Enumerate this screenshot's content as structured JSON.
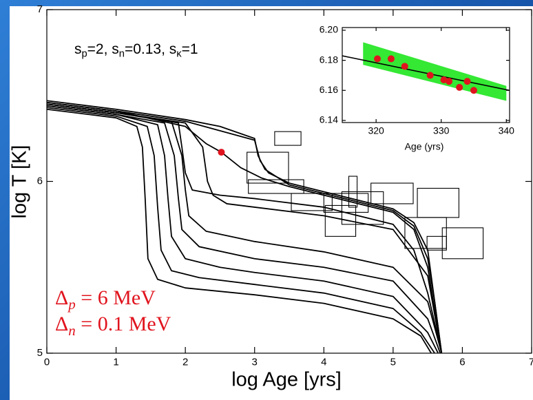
{
  "chart_data": [
    {
      "type": "line",
      "xlabel": "log Age [yrs]",
      "ylabel": "log T [K]",
      "xlim": [
        0,
        7
      ],
      "ylim": [
        5,
        7
      ],
      "xticks": [
        0,
        1,
        2,
        3,
        4,
        5,
        6,
        7
      ],
      "yticks": [
        5,
        6,
        7
      ],
      "series": [
        {
          "color": "#000000",
          "x": [
            0,
            1,
            1.3,
            1.38,
            1.42,
            1.46,
            1.6,
            2,
            3,
            4,
            5,
            5.4,
            5.55
          ],
          "values": [
            6.42,
            6.37,
            6.32,
            6.2,
            5.9,
            5.55,
            5.43,
            5.38,
            5.34,
            5.29,
            5.2,
            5.1,
            5.0
          ]
        },
        {
          "color": "#000000",
          "x": [
            0,
            1,
            1.45,
            1.55,
            1.6,
            1.65,
            1.8,
            2.2,
            3,
            4,
            5,
            5.4,
            5.6
          ],
          "values": [
            6.43,
            6.38,
            6.32,
            6.15,
            5.85,
            5.6,
            5.48,
            5.44,
            5.4,
            5.35,
            5.26,
            5.12,
            5.0
          ]
        },
        {
          "color": "#000000",
          "x": [
            0,
            1,
            1.6,
            1.7,
            1.75,
            1.8,
            2,
            2.5,
            3,
            4,
            5,
            5.5,
            5.65
          ],
          "values": [
            6.44,
            6.39,
            6.33,
            6.15,
            5.9,
            5.68,
            5.55,
            5.5,
            5.47,
            5.42,
            5.33,
            5.12,
            5.0
          ]
        },
        {
          "color": "#000000",
          "x": [
            0,
            1,
            1.7,
            1.84,
            1.9,
            1.95,
            2.2,
            3,
            4,
            5,
            5.5,
            5.68
          ],
          "values": [
            6.44,
            6.39,
            6.34,
            6.15,
            5.9,
            5.72,
            5.62,
            5.55,
            5.5,
            5.42,
            5.2,
            5.0
          ]
        },
        {
          "color": "#000000",
          "x": [
            0,
            1,
            1.8,
            1.95,
            2.0,
            2.05,
            2.3,
            3,
            4,
            5,
            5.5,
            5.7
          ],
          "values": [
            6.45,
            6.4,
            6.35,
            6.15,
            5.95,
            5.8,
            5.71,
            5.65,
            5.59,
            5.5,
            5.3,
            5.0
          ]
        },
        {
          "color": "#000000",
          "x": [
            0,
            1,
            2,
            2.25,
            2.32,
            2.4,
            2.6,
            3,
            4,
            5,
            5.5,
            5.7
          ],
          "values": [
            6.45,
            6.4,
            6.34,
            6.2,
            6.0,
            5.92,
            5.87,
            5.85,
            5.8,
            5.72,
            5.45,
            5.0
          ]
        },
        {
          "color": "#000000",
          "x": [
            0,
            1,
            1.9,
            1.95,
            2.0,
            2.1,
            2.5,
            3,
            4,
            5,
            5.3,
            5.5,
            5.7
          ],
          "values": [
            6.45,
            6.4,
            6.34,
            6.2,
            6.05,
            5.95,
            5.92,
            5.9,
            5.85,
            5.75,
            5.6,
            5.35,
            5.0
          ]
        },
        {
          "color": "#000000",
          "x": [
            0,
            1,
            2,
            2.3,
            2.52,
            2.8,
            3.1,
            3.5,
            4,
            5,
            5.3,
            5.5,
            5.7
          ],
          "values": [
            6.46,
            6.41,
            6.32,
            6.22,
            6.17,
            6.08,
            6.02,
            5.97,
            5.92,
            5.82,
            5.72,
            5.5,
            5.0
          ]
        },
        {
          "color": "#000000",
          "x": [
            0,
            1,
            2,
            2.5,
            3,
            3.05,
            3.15,
            3.5,
            4,
            5,
            5.3,
            5.5,
            5.6,
            5.7
          ],
          "values": [
            6.47,
            6.42,
            6.36,
            6.32,
            6.25,
            6.15,
            6.07,
            5.98,
            5.93,
            5.83,
            5.74,
            5.55,
            5.3,
            5.0
          ]
        },
        {
          "color": "#000000",
          "x": [
            0,
            1,
            2,
            3,
            3.08,
            3.2,
            3.5,
            4,
            5,
            5.3,
            5.5,
            5.7
          ],
          "values": [
            6.46,
            6.41,
            6.35,
            6.24,
            6.12,
            6.05,
            5.99,
            5.94,
            5.84,
            5.76,
            5.6,
            5.0
          ]
        }
      ],
      "box_color": "#000000",
      "boxes": [
        {
          "x": [
            3.29,
            3.67
          ],
          "y": [
            6.21,
            6.29
          ]
        },
        {
          "x": [
            2.89,
            3.49
          ],
          "y": [
            5.99,
            6.17
          ]
        },
        {
          "x": [
            2.91,
            3.71
          ],
          "y": [
            5.93,
            6.01
          ]
        },
        {
          "x": [
            3.53,
            4.12
          ],
          "y": [
            5.83,
            5.93
          ]
        },
        {
          "x": [
            4.0,
            4.64
          ],
          "y": [
            5.82,
            5.93
          ]
        },
        {
          "x": [
            4.26,
            4.86
          ],
          "y": [
            5.75,
            5.94
          ]
        },
        {
          "x": [
            4.36,
            4.48
          ],
          "y": [
            5.85,
            6.03
          ]
        },
        {
          "x": [
            4.68,
            5.29
          ],
          "y": [
            5.87,
            5.99
          ]
        },
        {
          "x": [
            4.02,
            4.46
          ],
          "y": [
            5.68,
            5.86
          ]
        },
        {
          "x": [
            5.35,
            5.95
          ],
          "y": [
            5.79,
            5.96
          ]
        },
        {
          "x": [
            5.17,
            5.77
          ],
          "y": [
            5.61,
            5.79
          ]
        },
        {
          "x": [
            5.49,
            5.77
          ],
          "y": [
            5.6,
            5.68
          ]
        },
        {
          "x": [
            5.71,
            6.3
          ],
          "y": [
            5.55,
            5.73
          ]
        }
      ],
      "points": {
        "color": "#e0141e",
        "x": [
          2.52
        ],
        "values": [
          6.17
        ]
      },
      "params": [
        {
          "text": "s",
          "sub": "p"
        },
        {
          "text": "=2, s",
          "sub": "n"
        },
        {
          "text": "=0.13, s",
          "sub": "κ"
        },
        {
          "text": "=1"
        }
      ],
      "gap_color": "#e0141e",
      "gaps": [
        [
          {
            "text": "Δ",
            "sub": "p"
          },
          {
            "text": " = 6 MeV"
          }
        ],
        [
          {
            "text": "Δ",
            "sub": "n"
          },
          {
            "text": " = 0.1 MeV"
          }
        ]
      ]
    },
    {
      "type": "scatter",
      "xlabel": "Age (yrs)",
      "xlim": [
        314.8,
        340.5
      ],
      "ylim": [
        6.1386,
        6.2018
      ],
      "xticks": [
        320,
        330,
        340
      ],
      "yticks": [
        {
          "value": 6.2,
          "label": "6.20"
        },
        6.18,
        6.16,
        6.14
      ],
      "band": {
        "color": "#1ee61e",
        "x": [
          318,
          340
        ],
        "upper": [
          6.192,
          6.163
        ],
        "lower": [
          6.177,
          6.153
        ]
      },
      "fit": {
        "color": "#000000",
        "x": [
          314.8,
          340.5
        ],
        "values": [
          6.183,
          6.16
        ]
      },
      "series": [
        {
          "color": "#e0141e",
          "x": [
            320.2,
            322.3,
            324.4,
            328.3,
            330.4,
            331.2,
            332.8,
            334,
            335
          ],
          "values": [
            6.181,
            6.181,
            6.176,
            6.17,
            6.167,
            6.166,
            6.162,
            6.166,
            6.16
          ]
        }
      ]
    }
  ]
}
